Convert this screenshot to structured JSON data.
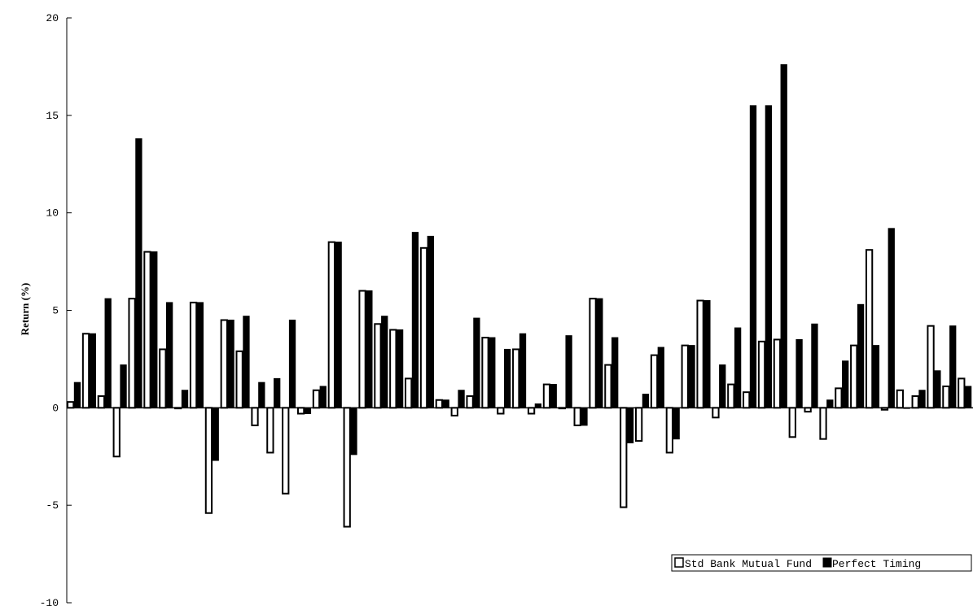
{
  "chart_data": {
    "type": "bar",
    "ylabel": "Return (%)",
    "ylim": [
      -10,
      20
    ],
    "yticks": [
      "20",
      "15",
      "10",
      "5",
      "0",
      "-5",
      "-10"
    ],
    "grid": false,
    "legend_position": "bottom-right",
    "colors": {
      "Std Bank Mutual Fund": "#ffffff",
      "Perfect Timing": "#000000",
      "outline": "#000000"
    },
    "series": [
      {
        "name": "Std Bank Mutual Fund",
        "values": [
          0.3,
          3.8,
          0.6,
          -2.5,
          5.6,
          8.0,
          3.0,
          0.0,
          5.4,
          -5.4,
          4.5,
          2.9,
          -0.9,
          -2.3,
          -4.4,
          -0.3,
          0.9,
          8.5,
          -6.1,
          6.0,
          4.3,
          4.0,
          1.5,
          8.2,
          0.4,
          -0.4,
          0.6,
          3.6,
          -0.3,
          3.0,
          -0.3,
          1.2,
          0.0,
          -0.9,
          5.6,
          2.2,
          -5.1,
          -1.7,
          2.7,
          -2.3,
          3.2,
          5.5,
          -0.5,
          1.2,
          0.8,
          3.4,
          3.5,
          -1.5,
          -0.2,
          -1.6,
          1.0,
          3.2,
          8.1,
          -0.1,
          0.9,
          0.6,
          4.2,
          1.1,
          1.5
        ]
      },
      {
        "name": "Perfect Timing",
        "values": [
          1.3,
          3.8,
          5.6,
          2.2,
          13.8,
          8.0,
          5.4,
          0.9,
          5.4,
          -2.7,
          4.5,
          4.7,
          1.3,
          1.5,
          4.5,
          -0.3,
          1.1,
          8.5,
          -2.4,
          6.0,
          4.7,
          4.0,
          9.0,
          8.8,
          0.4,
          0.9,
          4.6,
          3.6,
          3.0,
          3.8,
          0.2,
          1.2,
          3.7,
          -0.9,
          5.6,
          3.6,
          -1.8,
          0.7,
          3.1,
          -1.6,
          3.2,
          5.5,
          2.2,
          4.1,
          15.5,
          15.5,
          17.6,
          3.5,
          4.3,
          0.4,
          2.4,
          5.3,
          3.2,
          9.2,
          0.0,
          0.9,
          1.9,
          4.2,
          1.1
        ]
      }
    ]
  },
  "legend": {
    "items": [
      {
        "label": "Std Bank Mutual Fund"
      },
      {
        "label": "Perfect Timing"
      }
    ]
  }
}
